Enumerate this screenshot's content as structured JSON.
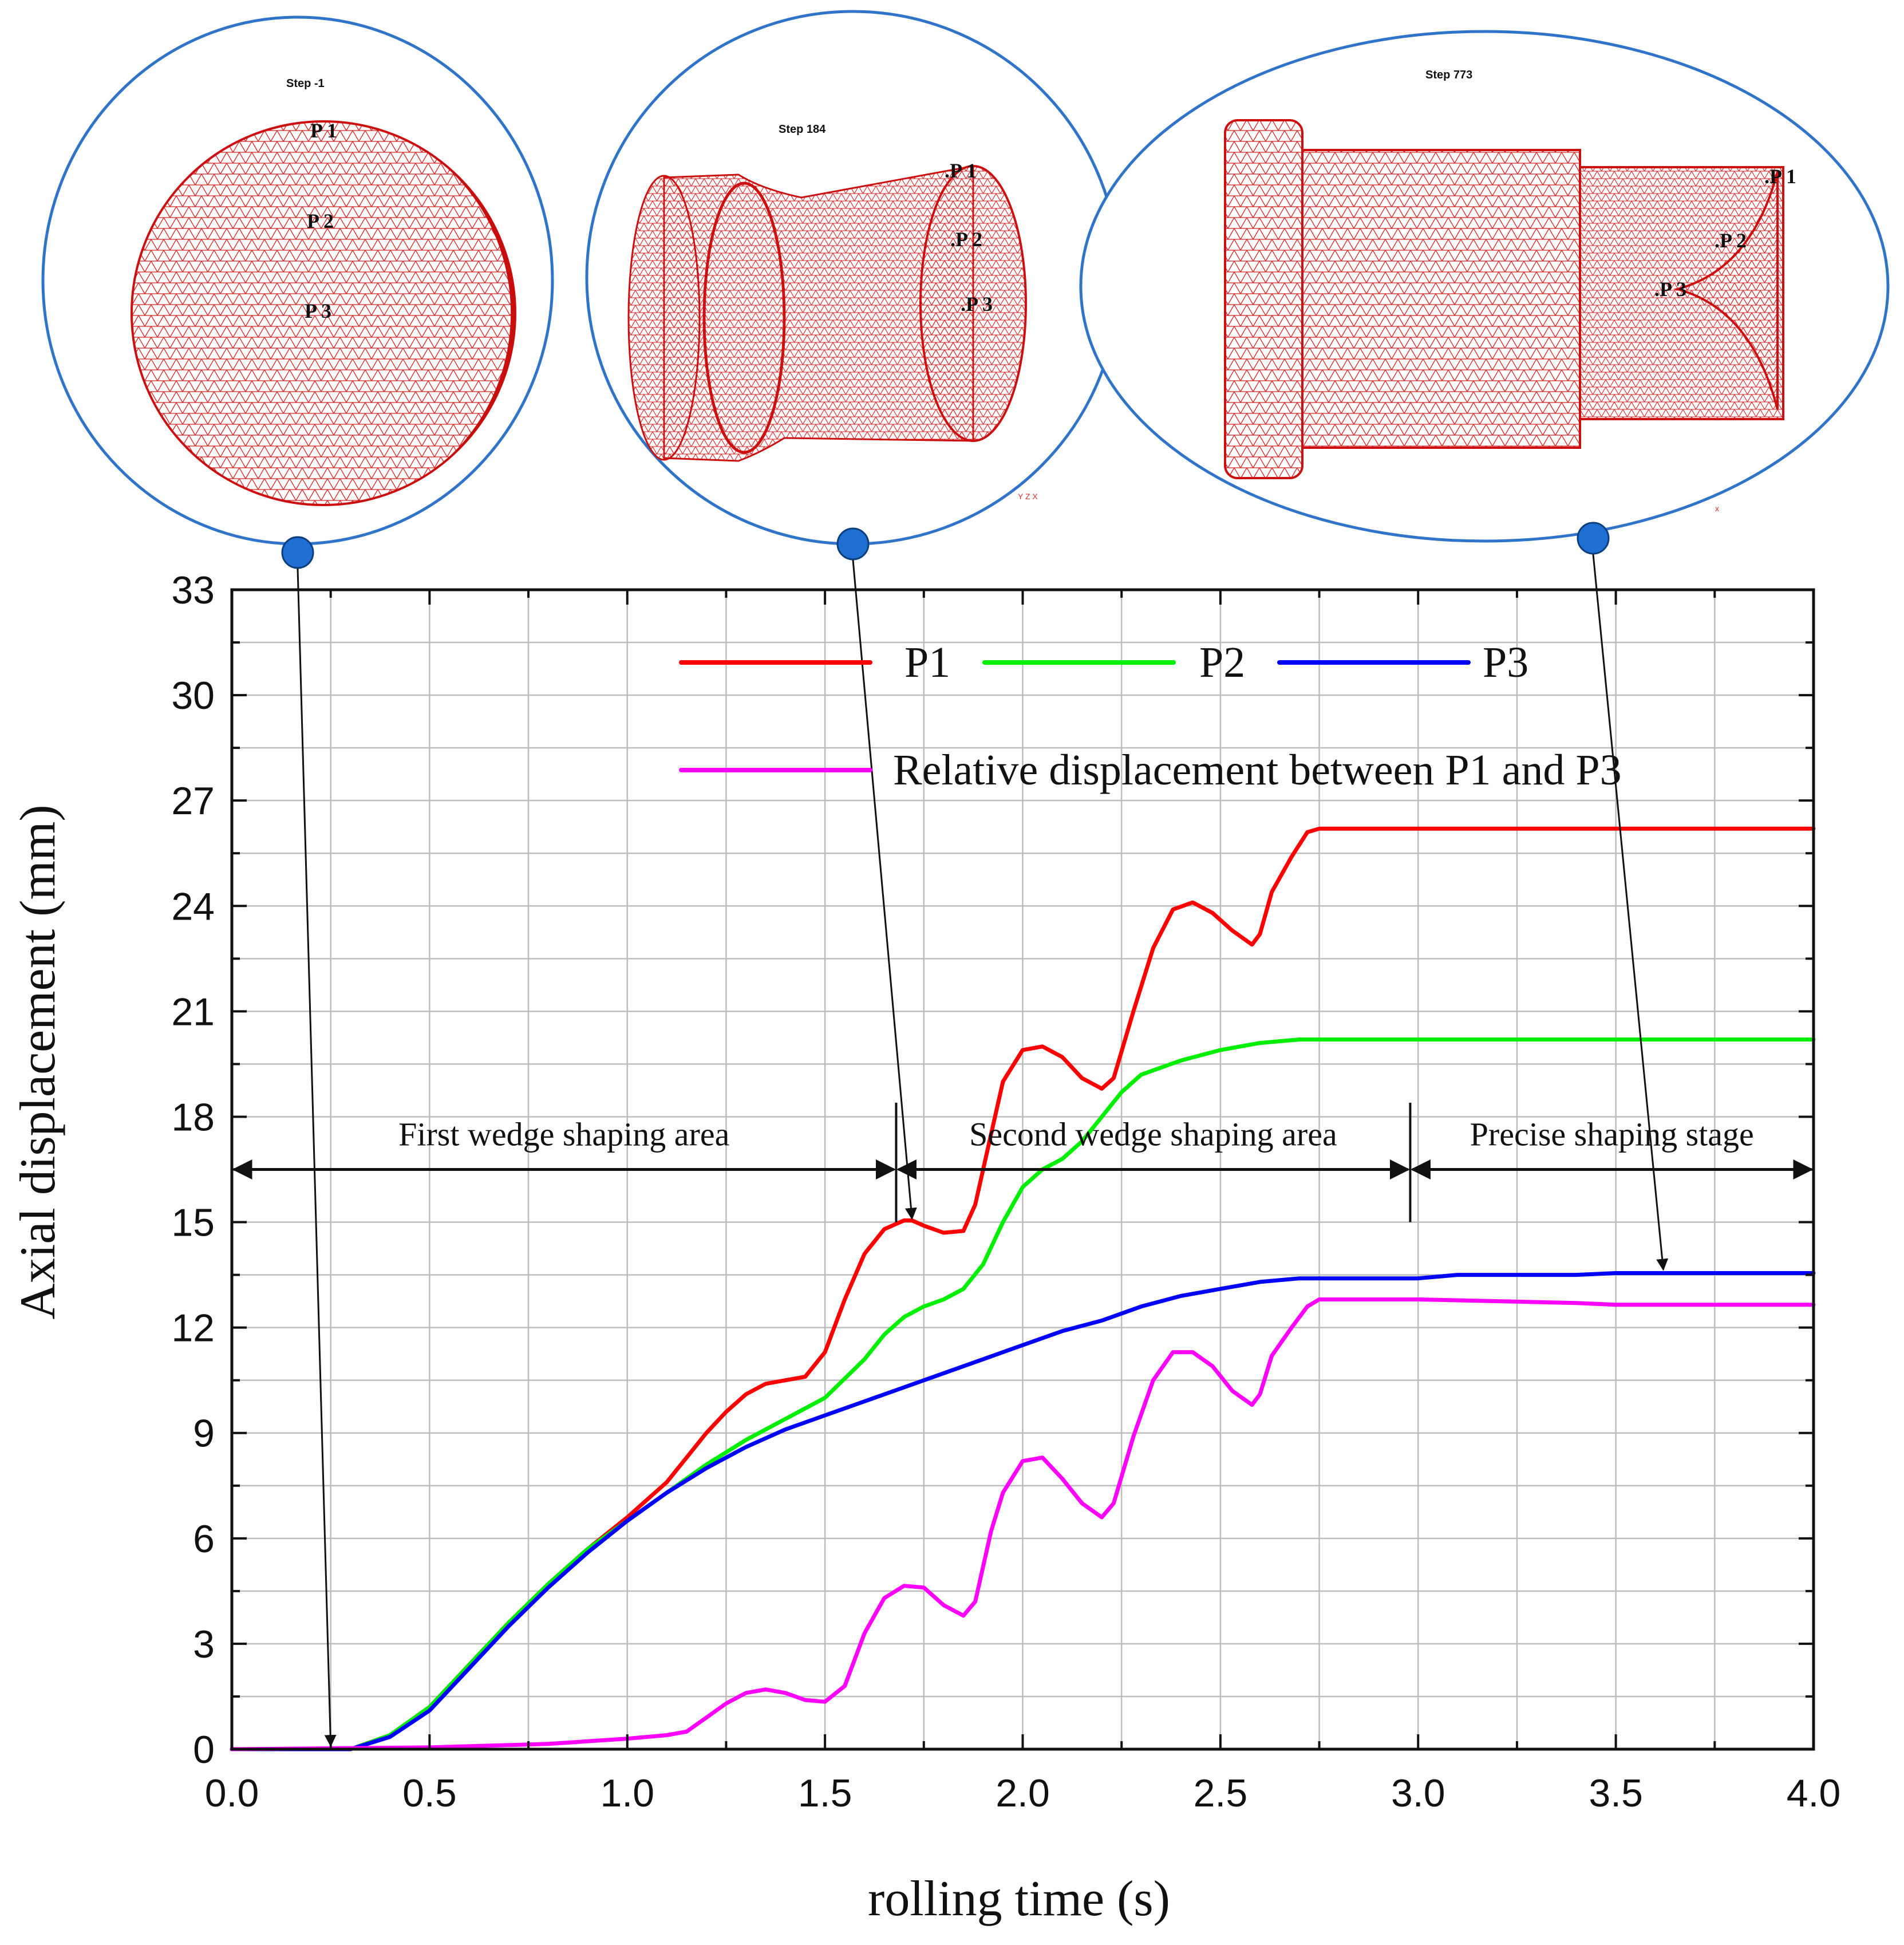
{
  "chart_data": {
    "type": "line",
    "xlabel": "rolling time (s)",
    "ylabel": "Axial displacement (mm)",
    "xlim": [
      0,
      4
    ],
    "ylim": [
      0,
      33
    ],
    "grid": true,
    "xticks": [
      0.0,
      0.25,
      0.5,
      0.75,
      1.0,
      1.25,
      1.5,
      1.75,
      2.0,
      2.25,
      2.5,
      2.75,
      3.0,
      3.25,
      3.5,
      3.75,
      4.0
    ],
    "xtick_labels": [
      "0.0",
      "0.5",
      "1.0",
      "1.5",
      "2.0",
      "2.5",
      "3.0",
      "3.5",
      "4.0"
    ],
    "yticks": [
      0,
      1.5,
      3,
      4.5,
      6,
      7.5,
      9,
      10.5,
      12,
      13.5,
      15,
      16.5,
      18,
      19.5,
      21,
      22.5,
      24,
      25.5,
      27,
      28.5,
      30,
      31.5,
      33
    ],
    "ytick_labels": [
      "0",
      "3",
      "6",
      "9",
      "12",
      "15",
      "18",
      "21",
      "24",
      "27",
      "30",
      "33"
    ],
    "legend_position": "top",
    "series": [
      {
        "name": "P1",
        "label": "P1",
        "color": "#ff0000",
        "x": [
          0,
          0.3,
          0.4,
          0.5,
          0.6,
          0.7,
          0.8,
          0.9,
          1.0,
          1.1,
          1.15,
          1.2,
          1.25,
          1.3,
          1.35,
          1.4,
          1.45,
          1.5,
          1.55,
          1.6,
          1.65,
          1.7,
          1.72,
          1.75,
          1.8,
          1.85,
          1.88,
          1.92,
          1.95,
          2.0,
          2.05,
          2.1,
          2.15,
          2.2,
          2.23,
          2.28,
          2.33,
          2.38,
          2.43,
          2.48,
          2.53,
          2.58,
          2.6,
          2.63,
          2.68,
          2.72,
          2.75,
          3.0,
          3.5,
          4.0
        ],
        "values": [
          0,
          0,
          0.4,
          1.2,
          2.4,
          3.6,
          4.7,
          5.7,
          6.6,
          7.6,
          8.3,
          9.0,
          9.6,
          10.1,
          10.4,
          10.5,
          10.6,
          11.3,
          12.8,
          14.1,
          14.8,
          15.05,
          15.05,
          14.9,
          14.7,
          14.75,
          15.5,
          17.5,
          19.0,
          19.9,
          20.0,
          19.7,
          19.1,
          18.8,
          19.1,
          21.0,
          22.8,
          23.9,
          24.1,
          23.8,
          23.3,
          22.9,
          23.2,
          24.4,
          25.4,
          26.1,
          26.2,
          26.2,
          26.2,
          26.2
        ]
      },
      {
        "name": "P2",
        "label": "P2",
        "color": "#00ee00",
        "x": [
          0,
          0.3,
          0.4,
          0.5,
          0.6,
          0.7,
          0.8,
          0.9,
          1.0,
          1.1,
          1.2,
          1.3,
          1.4,
          1.5,
          1.6,
          1.65,
          1.7,
          1.75,
          1.8,
          1.85,
          1.9,
          1.95,
          2.0,
          2.05,
          2.1,
          2.15,
          2.2,
          2.25,
          2.3,
          2.4,
          2.5,
          2.6,
          2.7,
          2.75,
          3.0,
          3.5,
          4.0
        ],
        "values": [
          0,
          0,
          0.4,
          1.2,
          2.4,
          3.6,
          4.7,
          5.7,
          6.5,
          7.3,
          8.1,
          8.8,
          9.4,
          10.0,
          11.1,
          11.8,
          12.3,
          12.6,
          12.8,
          13.1,
          13.8,
          15.0,
          16.0,
          16.5,
          16.8,
          17.3,
          18.0,
          18.7,
          19.2,
          19.6,
          19.9,
          20.1,
          20.2,
          20.2,
          20.2,
          20.2,
          20.2
        ]
      },
      {
        "name": "P3",
        "label": "P3",
        "color": "#0000ff",
        "x": [
          0,
          0.3,
          0.4,
          0.5,
          0.6,
          0.7,
          0.8,
          0.9,
          1.0,
          1.1,
          1.2,
          1.3,
          1.4,
          1.5,
          1.6,
          1.7,
          1.8,
          1.9,
          2.0,
          2.1,
          2.2,
          2.3,
          2.4,
          2.5,
          2.6,
          2.7,
          2.8,
          3.0,
          3.1,
          3.2,
          3.3,
          3.4,
          3.5,
          4.0
        ],
        "values": [
          0,
          0,
          0.35,
          1.1,
          2.3,
          3.5,
          4.6,
          5.6,
          6.5,
          7.3,
          8.0,
          8.6,
          9.1,
          9.5,
          9.9,
          10.3,
          10.7,
          11.1,
          11.5,
          11.9,
          12.2,
          12.6,
          12.9,
          13.1,
          13.3,
          13.4,
          13.4,
          13.4,
          13.5,
          13.5,
          13.5,
          13.5,
          13.55,
          13.55
        ]
      },
      {
        "name": "Relative displacement between P1 and P3",
        "label": "Relative displacement between P1 and P3",
        "color": "#ff00ff",
        "x": [
          0,
          0.5,
          0.8,
          1.0,
          1.1,
          1.15,
          1.2,
          1.25,
          1.3,
          1.35,
          1.4,
          1.45,
          1.5,
          1.55,
          1.6,
          1.65,
          1.7,
          1.75,
          1.8,
          1.85,
          1.88,
          1.92,
          1.95,
          2.0,
          2.05,
          2.1,
          2.15,
          2.2,
          2.23,
          2.28,
          2.33,
          2.38,
          2.43,
          2.48,
          2.53,
          2.58,
          2.6,
          2.63,
          2.68,
          2.72,
          2.75,
          3.0,
          3.4,
          3.5,
          4.0
        ],
        "values": [
          0,
          0.05,
          0.15,
          0.3,
          0.4,
          0.5,
          0.9,
          1.3,
          1.6,
          1.7,
          1.6,
          1.4,
          1.35,
          1.8,
          3.3,
          4.3,
          4.65,
          4.6,
          4.1,
          3.8,
          4.2,
          6.2,
          7.3,
          8.2,
          8.3,
          7.7,
          7.0,
          6.6,
          7.0,
          8.9,
          10.5,
          11.3,
          11.3,
          10.9,
          10.2,
          9.8,
          10.1,
          11.2,
          12.0,
          12.6,
          12.8,
          12.8,
          12.7,
          12.65,
          12.65
        ]
      }
    ],
    "stage_annotations": [
      {
        "label": "First wedge shaping area",
        "x_start": 0.0,
        "x_end": 1.68,
        "y": 16.5
      },
      {
        "label": "Second wedge shaping area",
        "x_start": 1.68,
        "x_end": 2.98,
        "y": 16.5
      },
      {
        "label": "Precise shaping stage",
        "x_start": 2.98,
        "x_end": 4.0,
        "y": 16.5
      }
    ],
    "stage_divider_x": [
      1.68,
      2.98
    ],
    "insets": [
      {
        "step_label": "Step   -1",
        "points": [
          "P 1",
          "P 2",
          "P 3"
        ],
        "marker_x": 0.25,
        "marker_y": 0
      },
      {
        "step_label": "Step  184",
        "points": [
          ".P 1",
          ".P 2",
          ".P 3"
        ],
        "axis_label": "Y Z X",
        "marker_x": 1.72,
        "marker_y": 15.0
      },
      {
        "step_label": "Step  773",
        "points": [
          ".P 1",
          ".P 2",
          ".P 3"
        ],
        "axis_label": "x",
        "marker_x": 3.62,
        "marker_y": 13.55
      }
    ]
  }
}
